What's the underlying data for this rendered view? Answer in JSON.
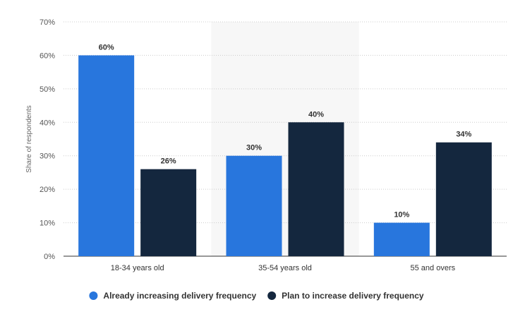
{
  "chart_data": {
    "type": "bar",
    "categories": [
      "18-34 years old",
      "35-54 years old",
      "55 and overs"
    ],
    "series": [
      {
        "name": "Already increasing delivery frequency",
        "color": "#2876dd",
        "values": [
          60,
          30,
          10
        ]
      },
      {
        "name": "Plan to increase delivery frequency",
        "color": "#14273e",
        "values": [
          26,
          40,
          34
        ]
      }
    ],
    "ylabel": "Share of respondents",
    "xlabel": "",
    "ylim": [
      0,
      70
    ],
    "yticks": [
      0,
      10,
      20,
      30,
      40,
      50,
      60,
      70
    ],
    "value_suffix": "%",
    "grid": true,
    "legend_position": "bottom",
    "highlight_category": "35-54 years old"
  }
}
